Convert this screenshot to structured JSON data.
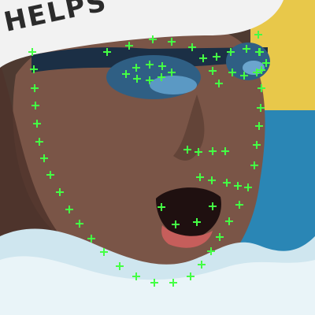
{
  "image": {
    "kind": "photo",
    "subject": "swimmer-face-with-landmarks"
  },
  "cap": {
    "text": "HELPS",
    "color": "#f2f2f2",
    "text_color": "#2b2b2b"
  },
  "colors": {
    "skin": "#7a5547",
    "skin_shadow": "#4f342b",
    "goggle": "#1b2f45",
    "goggle_lens": "#2f5f84",
    "water": "#cfe6ef",
    "water_blue": "#2a86b5",
    "background_yellow": "#e8c84a",
    "landmark": "#44ff44",
    "lips": "#c65e5b"
  },
  "landmarks": {
    "count": 68,
    "marker": "plus",
    "color": "#44ff44"
  }
}
